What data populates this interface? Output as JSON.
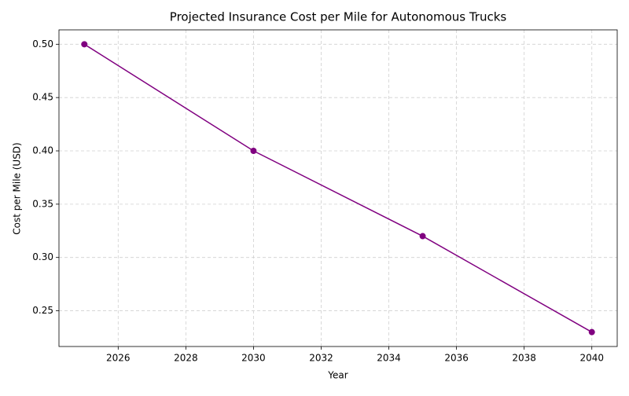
{
  "chart_data": {
    "type": "line",
    "title": "Projected Insurance Cost per Mile for Autonomous Trucks",
    "x_label": "Year",
    "y_label": "Cost per Mile (USD)",
    "x": [
      2025,
      2030,
      2035,
      2040
    ],
    "series": [
      {
        "name": "Cost per Mile",
        "color": "#800080",
        "values": [
          0.5,
          0.4,
          0.32,
          0.23
        ]
      }
    ],
    "xlim": [
      2024.25,
      2040.75
    ],
    "xticks": [
      2026,
      2028,
      2030,
      2032,
      2034,
      2036,
      2038,
      2040
    ],
    "ylim": [
      0.2165,
      0.5135
    ],
    "yticks": [
      {
        "value": 0.25,
        "label": "0.25"
      },
      {
        "value": 0.3,
        "label": "0.30"
      },
      {
        "value": 0.35,
        "label": "0.35"
      },
      {
        "value": 0.4,
        "label": "0.40"
      },
      {
        "value": 0.45,
        "label": "0.45"
      },
      {
        "value": 0.5,
        "label": "0.50"
      }
    ],
    "grid": true
  }
}
